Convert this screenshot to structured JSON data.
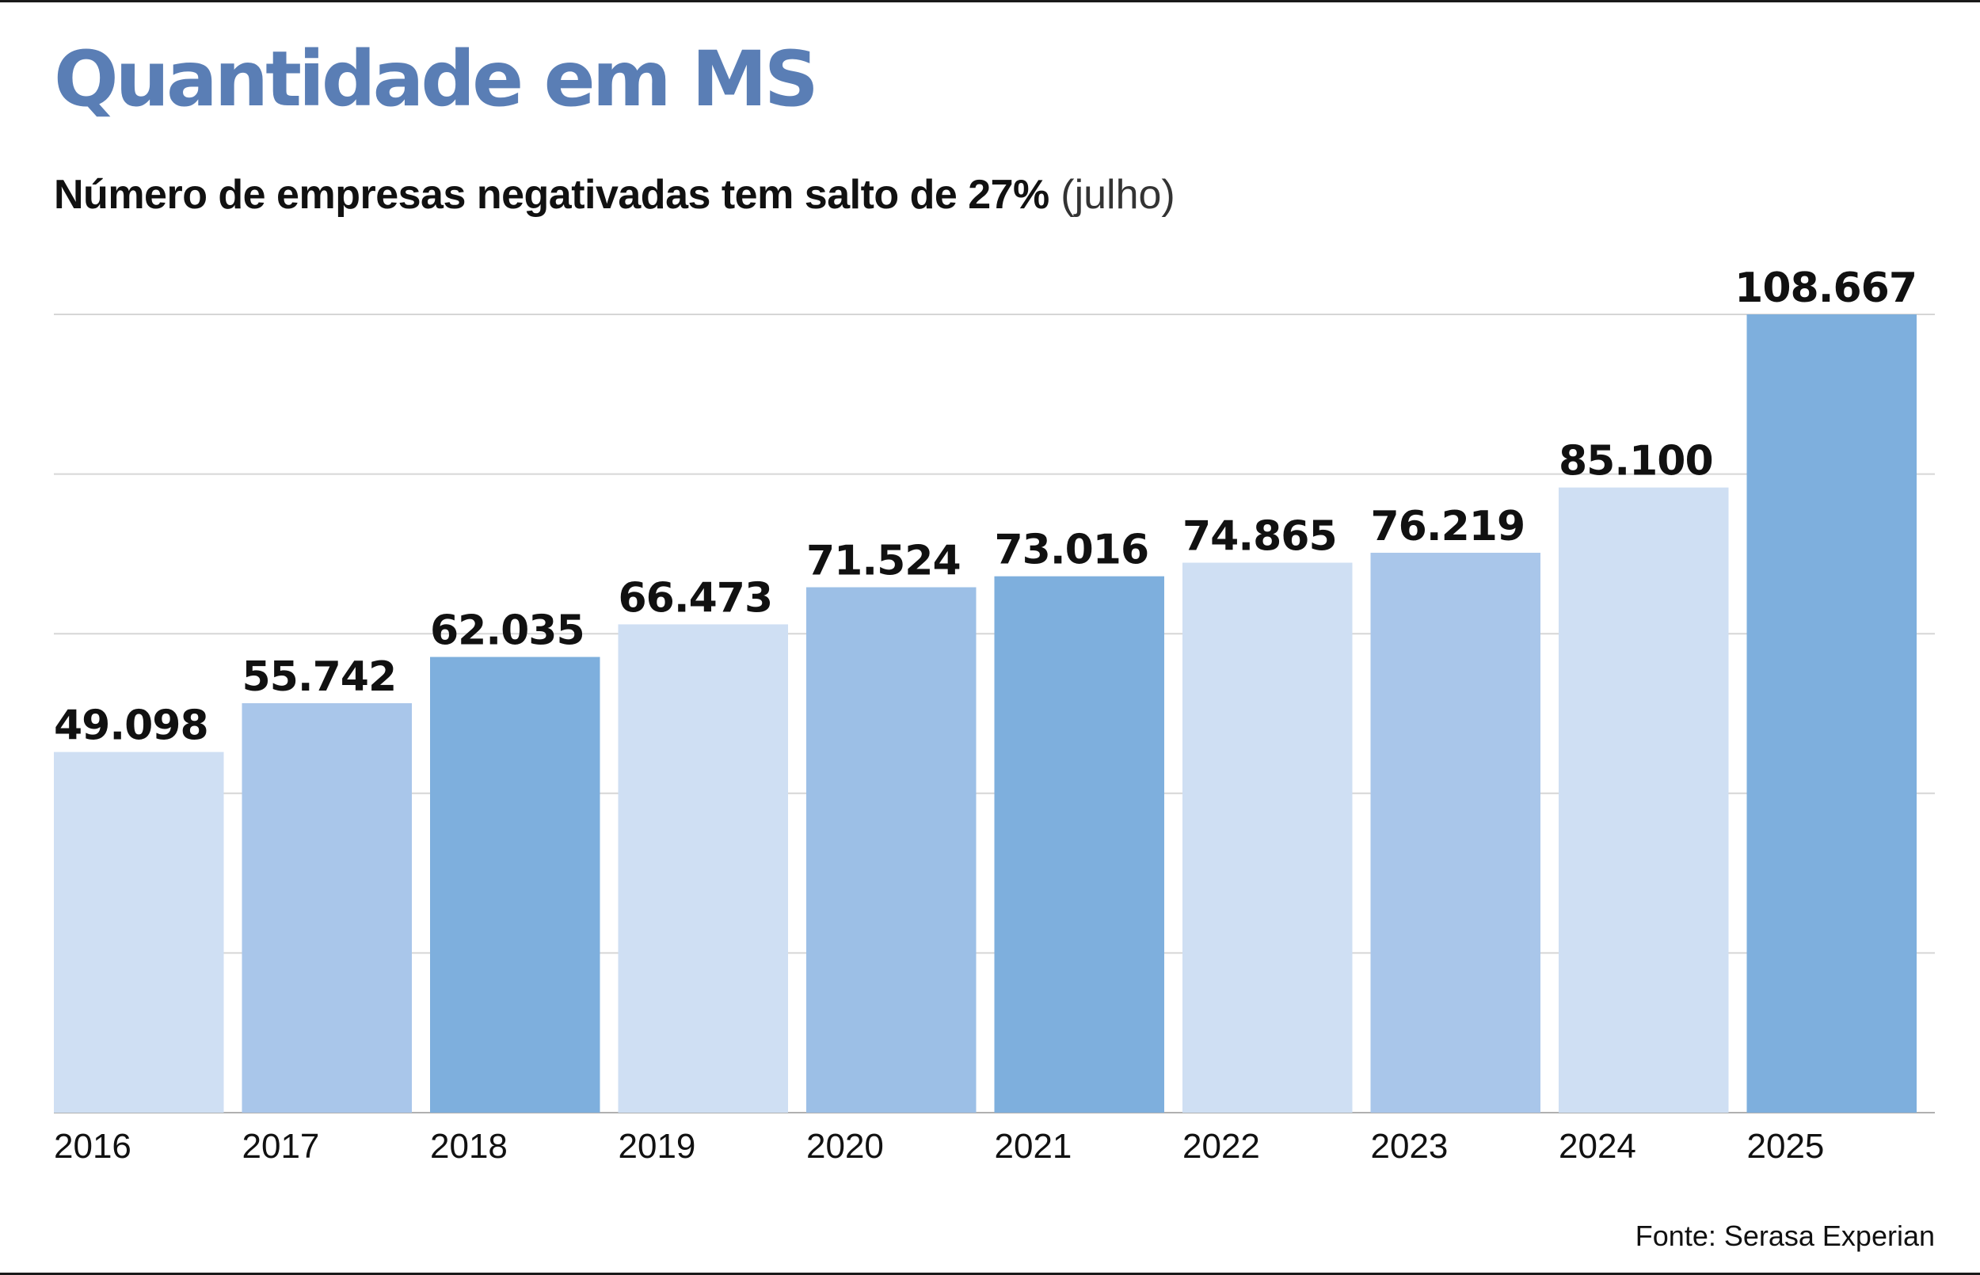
{
  "header": {
    "title": "Quantidade em MS",
    "subtitle_main": "Número de empresas negativadas tem salto de 27%",
    "subtitle_note": "(julho)"
  },
  "footer": {
    "source": "Fonte: Serasa Experian"
  },
  "chart_data": {
    "type": "bar",
    "categories": [
      "2016",
      "2017",
      "2018",
      "2019",
      "2020",
      "2021",
      "2022",
      "2023",
      "2024",
      "2025"
    ],
    "values": [
      49098,
      55742,
      62035,
      66473,
      71524,
      73016,
      74865,
      76219,
      85100,
      108667
    ],
    "value_labels": [
      "49.098",
      "55.742",
      "62.035",
      "66.473",
      "71.524",
      "73.016",
      "74.865",
      "76.219",
      "85.100",
      "108.667"
    ],
    "title": "Quantidade em MS",
    "xlabel": "",
    "ylabel": "",
    "ylim": [
      0,
      108667
    ],
    "grid": true,
    "legend": "none",
    "bar_colors": [
      "#cfdff3",
      "#a9c6ea",
      "#7eafdd",
      "#cfdff3",
      "#9cbfe6",
      "#7eafdd",
      "#cfdff3",
      "#a9c6ea",
      "#cfdff3",
      "#7eafdd"
    ],
    "grid_color": "#d6d6d6",
    "baseline_color": "#b0b0b0"
  }
}
